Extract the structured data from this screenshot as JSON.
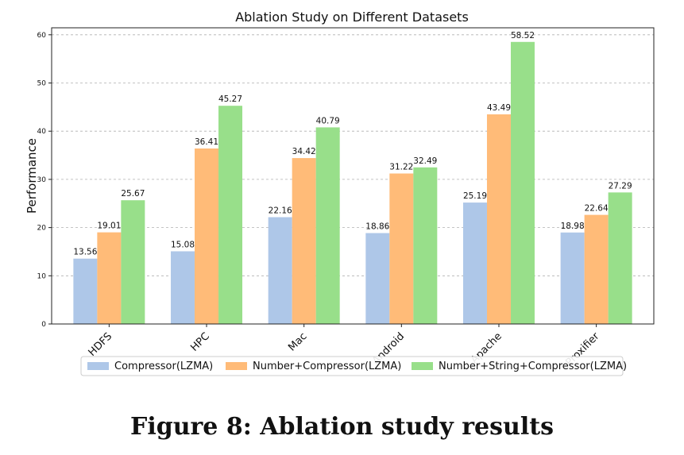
{
  "chart_data": {
    "type": "bar",
    "title": "Ablation Study on Different Datasets",
    "xlabel": "",
    "ylabel": "Performance",
    "categories": [
      "HDFS",
      "HPC",
      "Mac",
      "Android",
      "Apache",
      "Proxifier"
    ],
    "series": [
      {
        "name": "Compressor(LZMA)",
        "color": "#aec7e8",
        "values": [
          13.56,
          15.08,
          22.16,
          18.86,
          25.19,
          18.98
        ]
      },
      {
        "name": "Number+Compressor(LZMA)",
        "color": "#ffbb78",
        "values": [
          19.01,
          36.41,
          34.42,
          31.22,
          43.49,
          22.64
        ]
      },
      {
        "name": "Number+String+Compressor(LZMA)",
        "color": "#98df8a",
        "values": [
          25.67,
          45.27,
          40.79,
          32.49,
          58.52,
          27.29
        ]
      }
    ],
    "ylim": [
      0,
      61.45
    ],
    "yticks": [
      0,
      10,
      20,
      30,
      40,
      50,
      60
    ],
    "grid": true,
    "legend_position": "bottom"
  },
  "caption": "Figure 8: Ablation study results"
}
